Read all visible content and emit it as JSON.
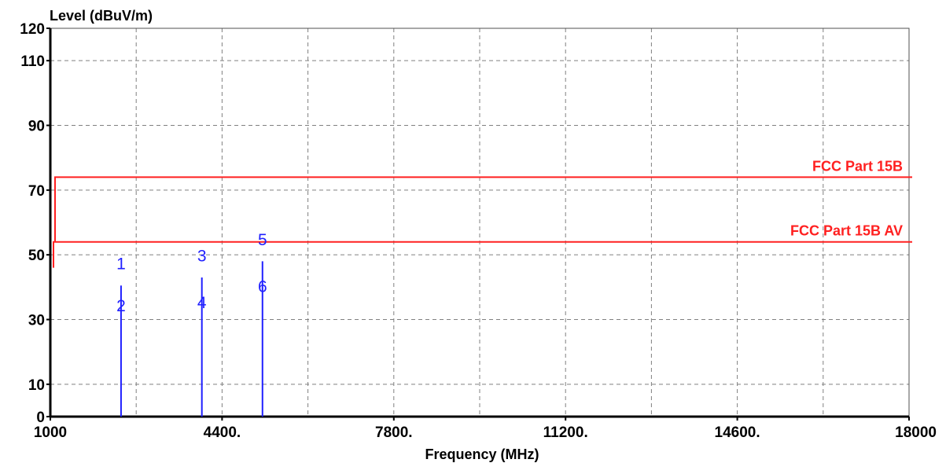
{
  "chart_data": {
    "type": "line",
    "title": "",
    "ylabel": "Level (dBuV/m)",
    "xlabel": "Frequency (MHz)",
    "xlim": [
      1000,
      18000
    ],
    "ylim": [
      0,
      120
    ],
    "grid": true,
    "x_ticks": [
      {
        "value": 1000,
        "label": "1000"
      },
      {
        "value": 4400,
        "label": "4400."
      },
      {
        "value": 7800,
        "label": "7800."
      },
      {
        "value": 11200,
        "label": "11200."
      },
      {
        "value": 14600,
        "label": "14600."
      },
      {
        "value": 18000,
        "label": "18000"
      }
    ],
    "x_minor_grid": [
      2700,
      6100,
      9500,
      12900,
      16300
    ],
    "y_ticks": [
      {
        "value": 0,
        "label": "0"
      },
      {
        "value": 10,
        "label": "10"
      },
      {
        "value": 30,
        "label": "30"
      },
      {
        "value": 50,
        "label": "50"
      },
      {
        "value": 70,
        "label": "70"
      },
      {
        "value": 90,
        "label": "90"
      },
      {
        "value": 110,
        "label": "110"
      },
      {
        "value": 120,
        "label": "120"
      }
    ],
    "y_grid": [
      10,
      30,
      50,
      70,
      90,
      110
    ],
    "limit_lines": [
      {
        "name": "FCC Part 15B",
        "value": 74,
        "start": 1000,
        "end": 18000,
        "start_drop_to": 54,
        "color": "#ff2020"
      },
      {
        "name": "FCC Part 15B AV",
        "value": 54,
        "start": 1000,
        "end": 18000,
        "start_drop_to": 46,
        "color": "#ff2020"
      }
    ],
    "spikes": [
      {
        "x": 2400,
        "y": 40.5,
        "color": "#2020ff"
      },
      {
        "x": 4000,
        "y": 43,
        "color": "#2020ff"
      },
      {
        "x": 5200,
        "y": 48,
        "color": "#2020ff"
      }
    ],
    "markers": [
      {
        "label": "1",
        "x": 2400,
        "y": 45.5
      },
      {
        "label": "2",
        "x": 2400,
        "y": 32.5
      },
      {
        "label": "3",
        "x": 4000,
        "y": 48
      },
      {
        "label": "4",
        "x": 4000,
        "y": 33.5
      },
      {
        "label": "5",
        "x": 5200,
        "y": 53
      },
      {
        "label": "6",
        "x": 5200,
        "y": 38.5
      }
    ],
    "colors": {
      "grid": "#808080",
      "limit": "#ff2020",
      "trace": "#2020ff",
      "axis": "#000000"
    }
  }
}
